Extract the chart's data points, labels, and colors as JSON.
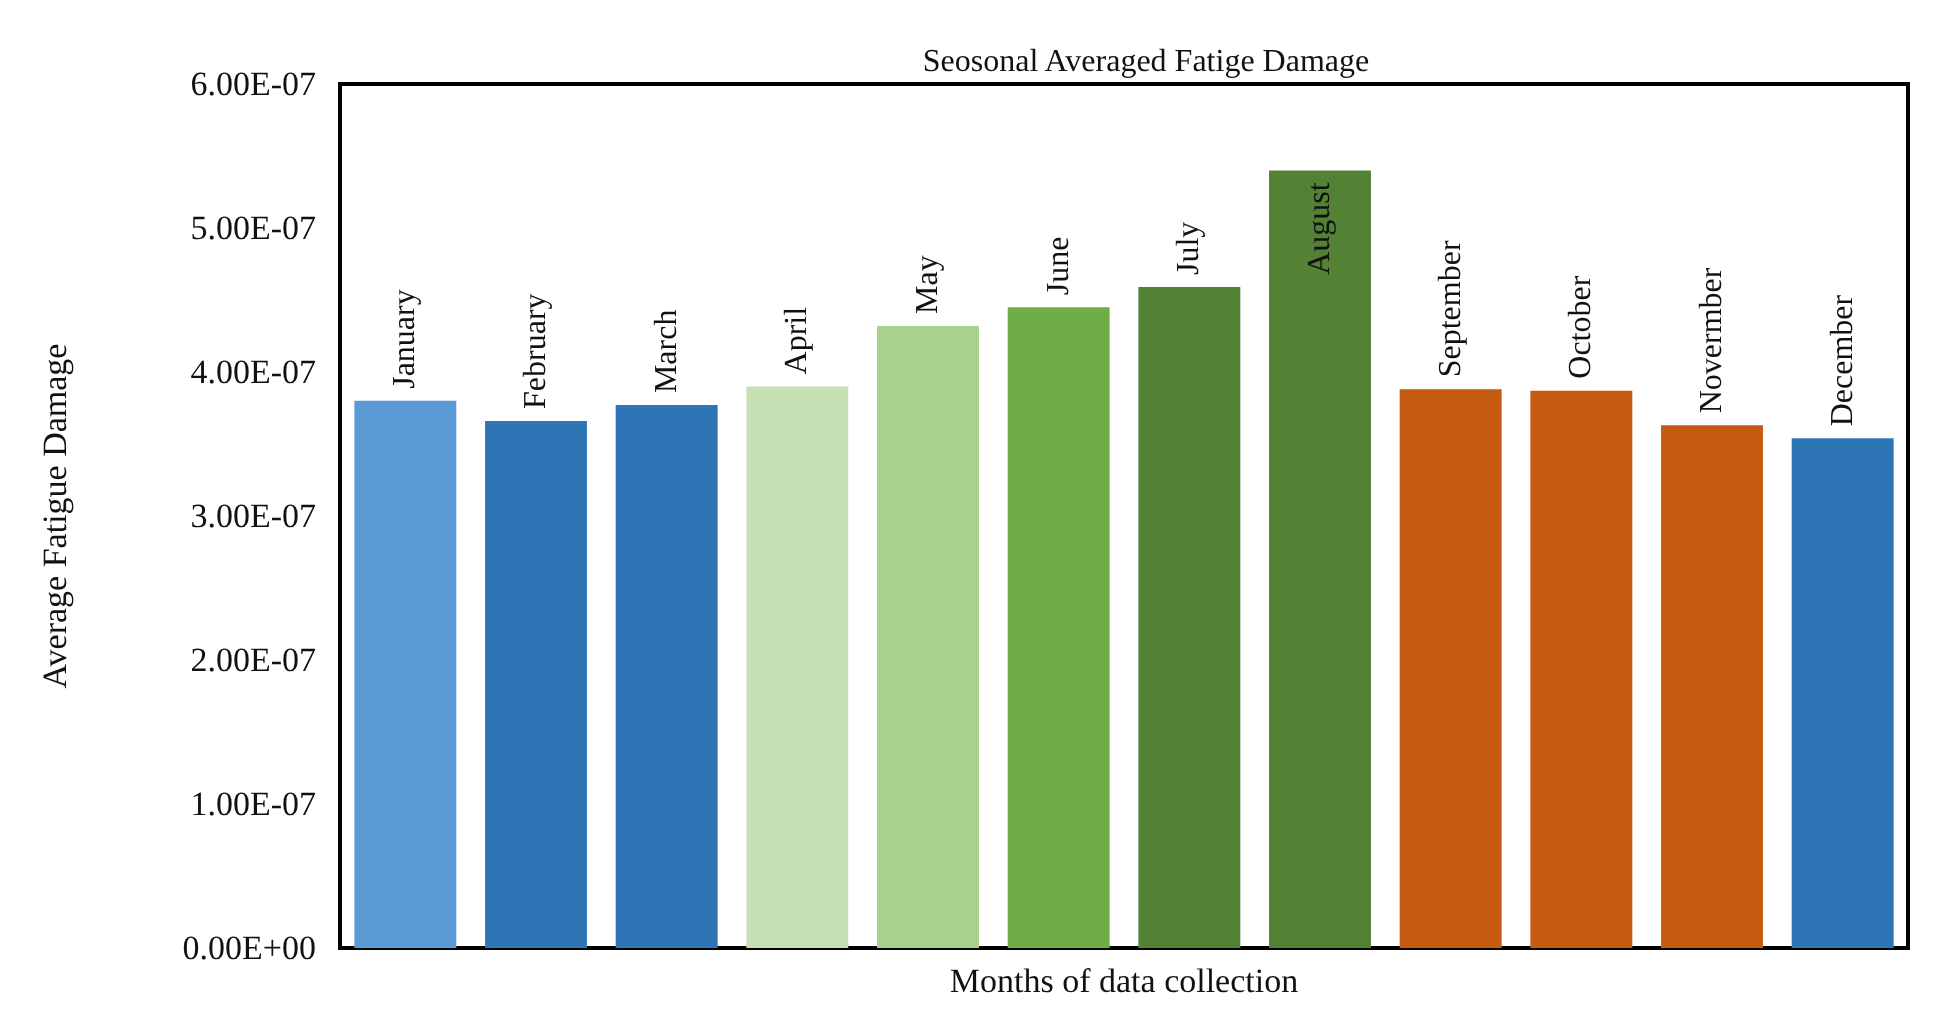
{
  "chart_data": {
    "type": "bar",
    "title": "Seosonal Averaged Fatige Damage",
    "xlabel": "Months of data collection",
    "ylabel": "Average Fatigue Damage",
    "categories": [
      "January",
      "February",
      "March",
      "April",
      "May",
      "June",
      "July",
      "August",
      "September",
      "October",
      "Novermber",
      "December"
    ],
    "values": [
      3.8e-07,
      3.66e-07,
      3.77e-07,
      3.9e-07,
      4.32e-07,
      4.45e-07,
      4.59e-07,
      5.4e-07,
      3.88e-07,
      3.87e-07,
      3.63e-07,
      3.54e-07
    ],
    "colors": [
      "#5b9bd5",
      "#2e75b6",
      "#2e75b6",
      "#c5e0b4",
      "#a9d18e",
      "#70ad47",
      "#548235",
      "#548235",
      "#c55a11",
      "#c55a11",
      "#c55a11",
      "#2e75b6"
    ],
    "ylim": [
      0,
      6e-07
    ],
    "yticks": [
      {
        "value": 0,
        "label": "0.00E+00"
      },
      {
        "value": 1e-07,
        "label": "1.00E-07"
      },
      {
        "value": 2e-07,
        "label": "2.00E-07"
      },
      {
        "value": 3e-07,
        "label": "3.00E-07"
      },
      {
        "value": 4e-07,
        "label": "4.00E-07"
      },
      {
        "value": 5e-07,
        "label": "5.00E-07"
      },
      {
        "value": 6e-07,
        "label": "6.00E-07"
      }
    ],
    "grid": false
  }
}
